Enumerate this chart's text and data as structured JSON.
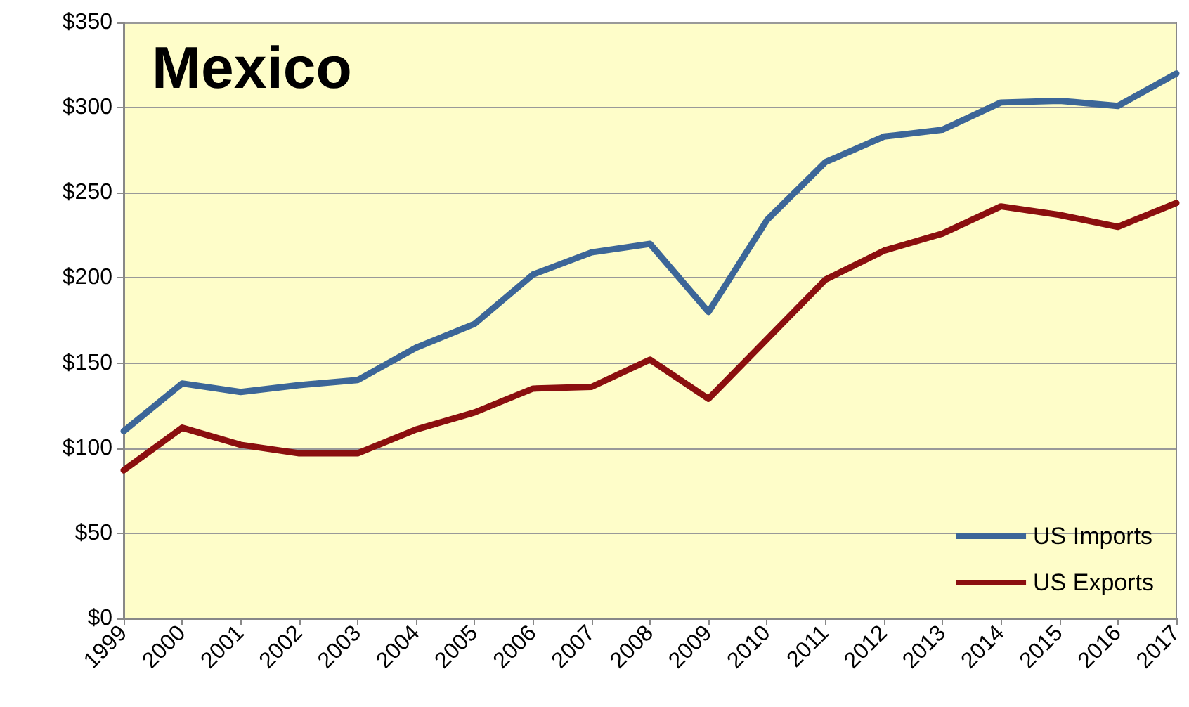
{
  "chart_data": {
    "type": "line",
    "title": "Mexico",
    "categories": [
      "1999",
      "2000",
      "2001",
      "2002",
      "2003",
      "2004",
      "2005",
      "2006",
      "2007",
      "2008",
      "2009",
      "2010",
      "2011",
      "2012",
      "2013",
      "2014",
      "2015",
      "2016",
      "2017"
    ],
    "series": [
      {
        "name": "US Imports",
        "color": "#3c6698",
        "values": [
          110,
          138,
          133,
          137,
          140,
          159,
          173,
          202,
          215,
          220,
          180,
          234,
          268,
          283,
          287,
          303,
          304,
          301,
          320
        ]
      },
      {
        "name": "US Exports",
        "color": "#8b0f0f",
        "values": [
          87,
          112,
          102,
          97,
          97,
          111,
          121,
          135,
          136,
          152,
          129,
          164,
          199,
          216,
          226,
          242,
          237,
          230,
          244
        ]
      }
    ],
    "ylim": [
      0,
      350
    ],
    "yticks": [
      {
        "value": 0,
        "label": "$0"
      },
      {
        "value": 50,
        "label": "$50"
      },
      {
        "value": 100,
        "label": "$100"
      },
      {
        "value": 150,
        "label": "$150"
      },
      {
        "value": 200,
        "label": "$200"
      },
      {
        "value": 250,
        "label": "$250"
      },
      {
        "value": 300,
        "label": "$300"
      },
      {
        "value": 350,
        "label": "$350"
      }
    ],
    "grid": "y",
    "legend": "bottom right",
    "marker": "none",
    "line_style": "solid"
  }
}
